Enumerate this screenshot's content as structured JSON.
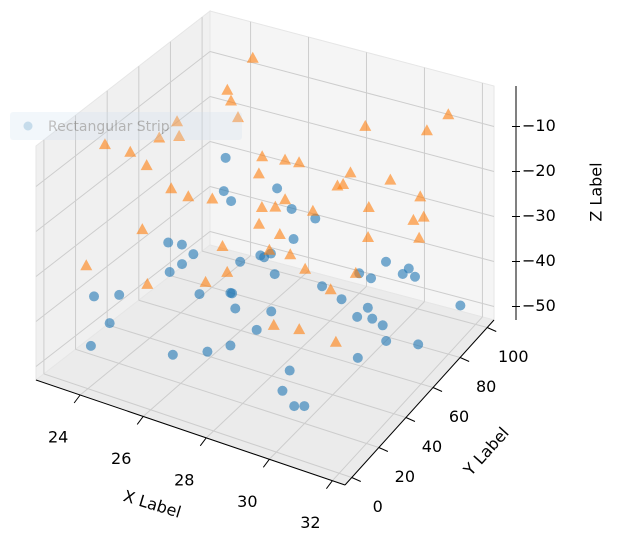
{
  "chart_data": {
    "type": "scatter3d",
    "legend_label": "Rectangular Strip",
    "xlabel": "X Label",
    "ylabel": "Y Label",
    "zlabel": "Z Label",
    "xlim": [
      22.6,
      32.4
    ],
    "ylim": [
      -5,
      105
    ],
    "zlim": [
      -53,
      -1
    ],
    "xticks": [
      24,
      26,
      28,
      30,
      32
    ],
    "yticks": [
      0,
      20,
      40,
      60,
      80,
      100
    ],
    "zticks": [
      {
        "value": -50,
        "label": "−50"
      },
      {
        "value": -40,
        "label": "−40"
      },
      {
        "value": -30,
        "label": "−30"
      },
      {
        "value": -20,
        "label": "−20"
      },
      {
        "value": -10,
        "label": "−10"
      }
    ],
    "grid": true,
    "series": [
      {
        "marker": "circle",
        "color": "#1f77b4",
        "x": [
          23.5,
          24.8,
          26.1,
          27.3,
          28.9,
          30.2,
          31.5,
          25.4,
          29.7,
          31.8,
          23.9,
          26.7,
          28.2,
          30.8,
          24.3,
          27.9,
          29.1,
          31.2,
          25.8,
          23.2,
          26.4,
          28.6,
          30.5,
          24.6,
          27.1,
          29.4,
          31.6,
          25.1,
          28.0,
          30.0,
          23.7,
          26.9,
          29.9,
          31.0,
          24.1,
          27.6,
          28.4,
          30.7,
          25.6,
          23.4,
          26.2,
          29.2,
          31.4,
          24.9,
          27.4,
          30.3,
          28.8,
          25.3,
          31.9,
          26.5
        ],
        "y": [
          12,
          45,
          78,
          33,
          90,
          5,
          62,
          27,
          84,
          51,
          70,
          18,
          96,
          40,
          8,
          57,
          24,
          73,
          88,
          36,
          65,
          2,
          47,
          81,
          15,
          59,
          30,
          93,
          42,
          68,
          10,
          76,
          22,
          54,
          87,
          38,
          3,
          63,
          29,
          99,
          49,
          14,
          71,
          35,
          82,
          6,
          58,
          26,
          91,
          44
        ],
        "z": [
          -48,
          -32,
          -41,
          -27,
          -45,
          -36,
          -29,
          -50,
          -38,
          -26,
          -43,
          -31,
          -47,
          -34,
          -40,
          -28,
          -49,
          -35,
          -30,
          -44,
          -37,
          -25,
          -46,
          -33,
          -42,
          -39,
          -27,
          -48,
          -31,
          -45,
          -36,
          -29,
          -50,
          -40,
          -26,
          -43,
          -34,
          -47,
          -30,
          -38,
          -41,
          -28,
          -49,
          -35,
          -32,
          -44,
          -37,
          -25,
          -46,
          -39
        ]
      },
      {
        "marker": "triangle",
        "color": "#ff7f0e",
        "x": [
          24.2,
          27.5,
          30.9,
          25.9,
          29.6,
          23.3,
          28.3,
          31.3,
          26.6,
          30.1,
          24.7,
          28.7,
          31.7,
          23.8,
          27.2,
          29.8,
          26.0,
          30.6,
          25.2,
          28.1,
          31.1,
          24.4,
          27.8,
          30.4,
          23.6,
          26.8,
          29.3,
          31.5,
          25.5,
          28.5,
          24.0,
          27.0,
          30.2,
          26.3,
          29.0,
          31.8,
          23.1,
          25.7,
          28.9,
          30.8,
          24.5,
          27.3,
          29.5,
          26.1,
          31.2,
          23.9,
          28.2,
          25.0,
          30.0,
          27.7
        ],
        "y": [
          55,
          20,
          88,
          43,
          7,
          71,
          32,
          95,
          60,
          14,
          79,
          38,
          66,
          3,
          50,
          85,
          25,
          92,
          11,
          47,
          74,
          30,
          98,
          57,
          19,
          83,
          41,
          9,
          68,
          35,
          90,
          52,
          16,
          77,
          28,
          63,
          45,
          4,
          86,
          39,
          97,
          21,
          58,
          72,
          12,
          48,
          81,
          34,
          65,
          1
        ],
        "z": [
          -12,
          -25,
          -8,
          -19,
          -28,
          -15,
          -22,
          -6,
          -17,
          -30,
          -10,
          -24,
          -14,
          -27,
          -9,
          -20,
          -13,
          -29,
          -18,
          -7,
          -23,
          -11,
          -26,
          -16,
          -5,
          -21,
          -14,
          -28,
          -9,
          -19,
          -12,
          -25,
          -17,
          -30,
          -8,
          -22,
          -15,
          -27,
          -10,
          -24,
          -6,
          -20,
          -13,
          -29,
          -18,
          -11,
          -23,
          -16,
          -26,
          -21
        ]
      }
    ]
  }
}
